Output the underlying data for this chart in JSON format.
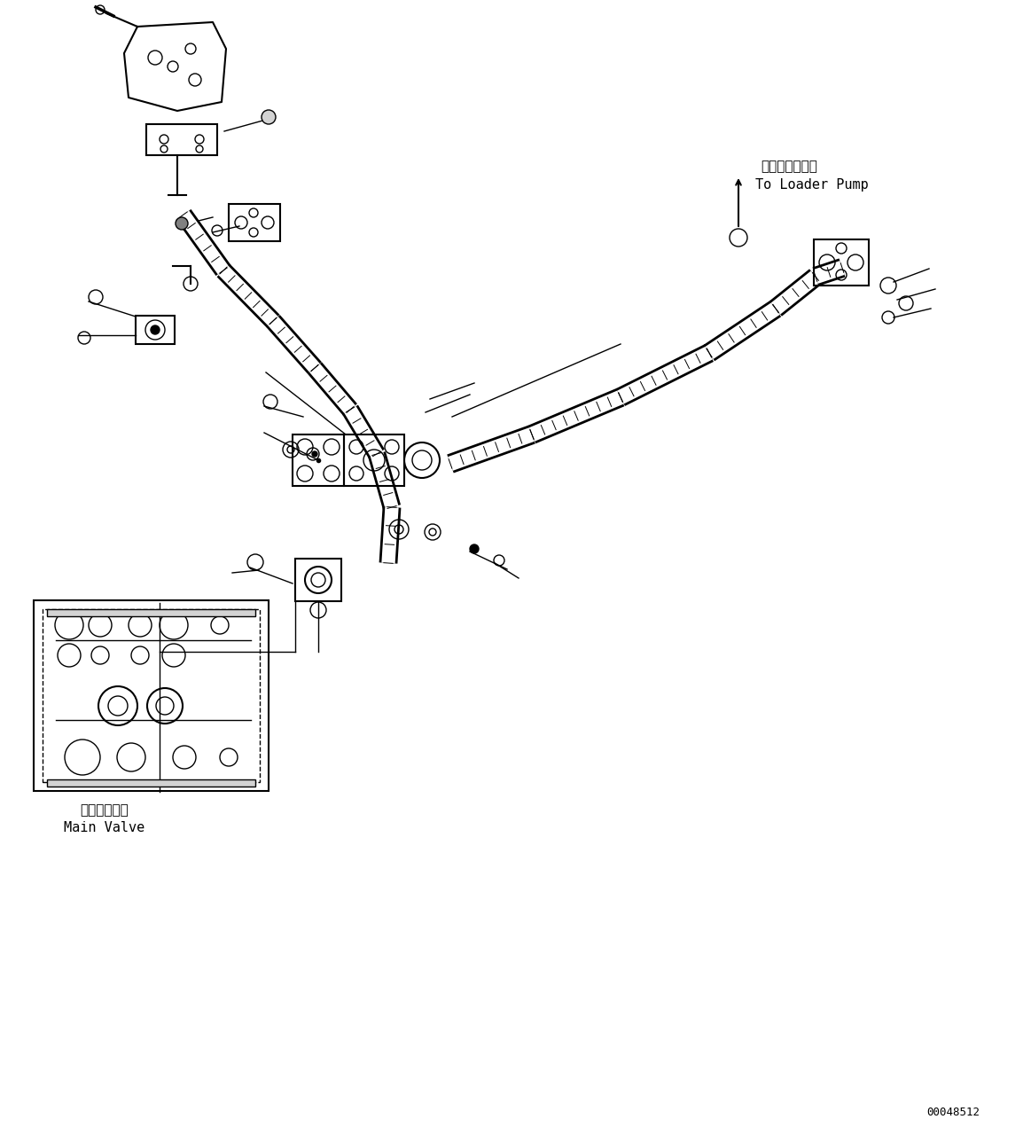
{
  "bg_color": "#ffffff",
  "line_color": "#000000",
  "fig_width": 11.63,
  "fig_height": 12.8,
  "dpi": 100,
  "label_loader_pump_ja": "ローダポンプへ",
  "label_loader_pump_en": "To Loader Pump",
  "label_main_valve_ja": "メインバルブ",
  "label_main_valve_en": "Main Valve",
  "part_number": "00048512",
  "font_size_label": 11,
  "font_size_part": 9
}
